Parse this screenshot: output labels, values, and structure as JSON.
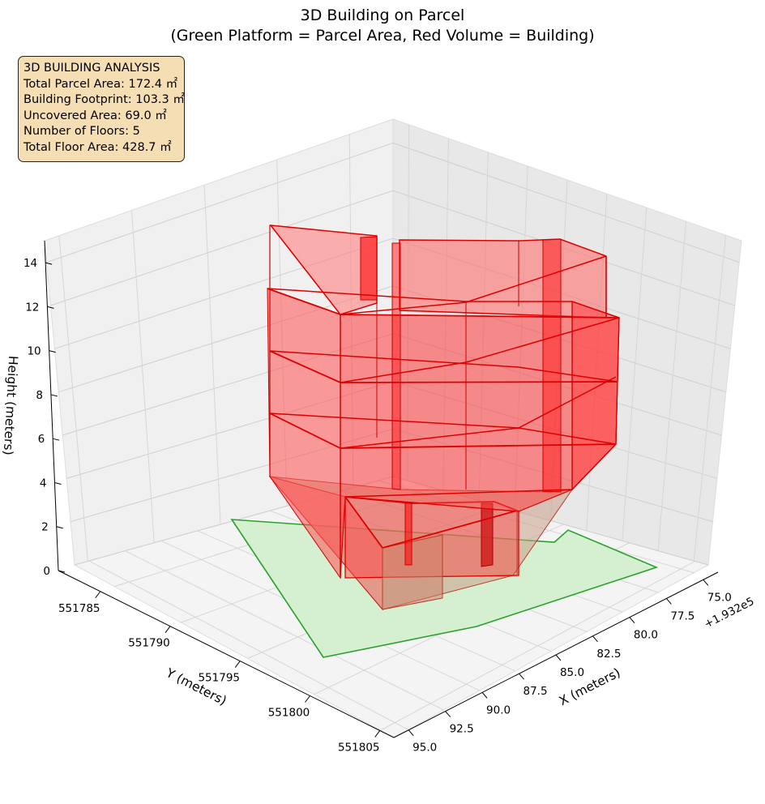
{
  "chart_data": {
    "type": "3d-polygon",
    "title_line1": "3D Building on Parcel",
    "title_line2": "(Green Platform = Parcel Area, Red Volume = Building)",
    "xlabel": "X (meters)",
    "ylabel": "Y (meters)",
    "zlabel": "Height (meters)",
    "x_offset_label": "+1.932e5",
    "x_ticks": [
      "75.0",
      "77.5",
      "80.0",
      "82.5",
      "85.0",
      "87.5",
      "90.0",
      "92.5",
      "95.0"
    ],
    "y_ticks": [
      "551785",
      "551790",
      "551795",
      "551800",
      "551805"
    ],
    "z_ticks": [
      "0",
      "2",
      "4",
      "6",
      "8",
      "10",
      "12",
      "14"
    ],
    "x_range": [
      74.0,
      96.0
    ],
    "y_range": [
      551782,
      551806
    ],
    "z_range": [
      0,
      15
    ],
    "parcel_color": "#2ca02c",
    "parcel_fill": "#d4f0d0",
    "building_color": "#ff0000",
    "grid": true
  },
  "info": {
    "heading": "3D BUILDING ANALYSIS",
    "lines": [
      "Total Parcel Area: 172.4 ㎡",
      "Building Footprint: 103.3 ㎡",
      "Uncovered Area: 69.0 ㎡",
      "Number of Floors: 5",
      "Total Floor Area: 428.7 ㎡"
    ]
  }
}
